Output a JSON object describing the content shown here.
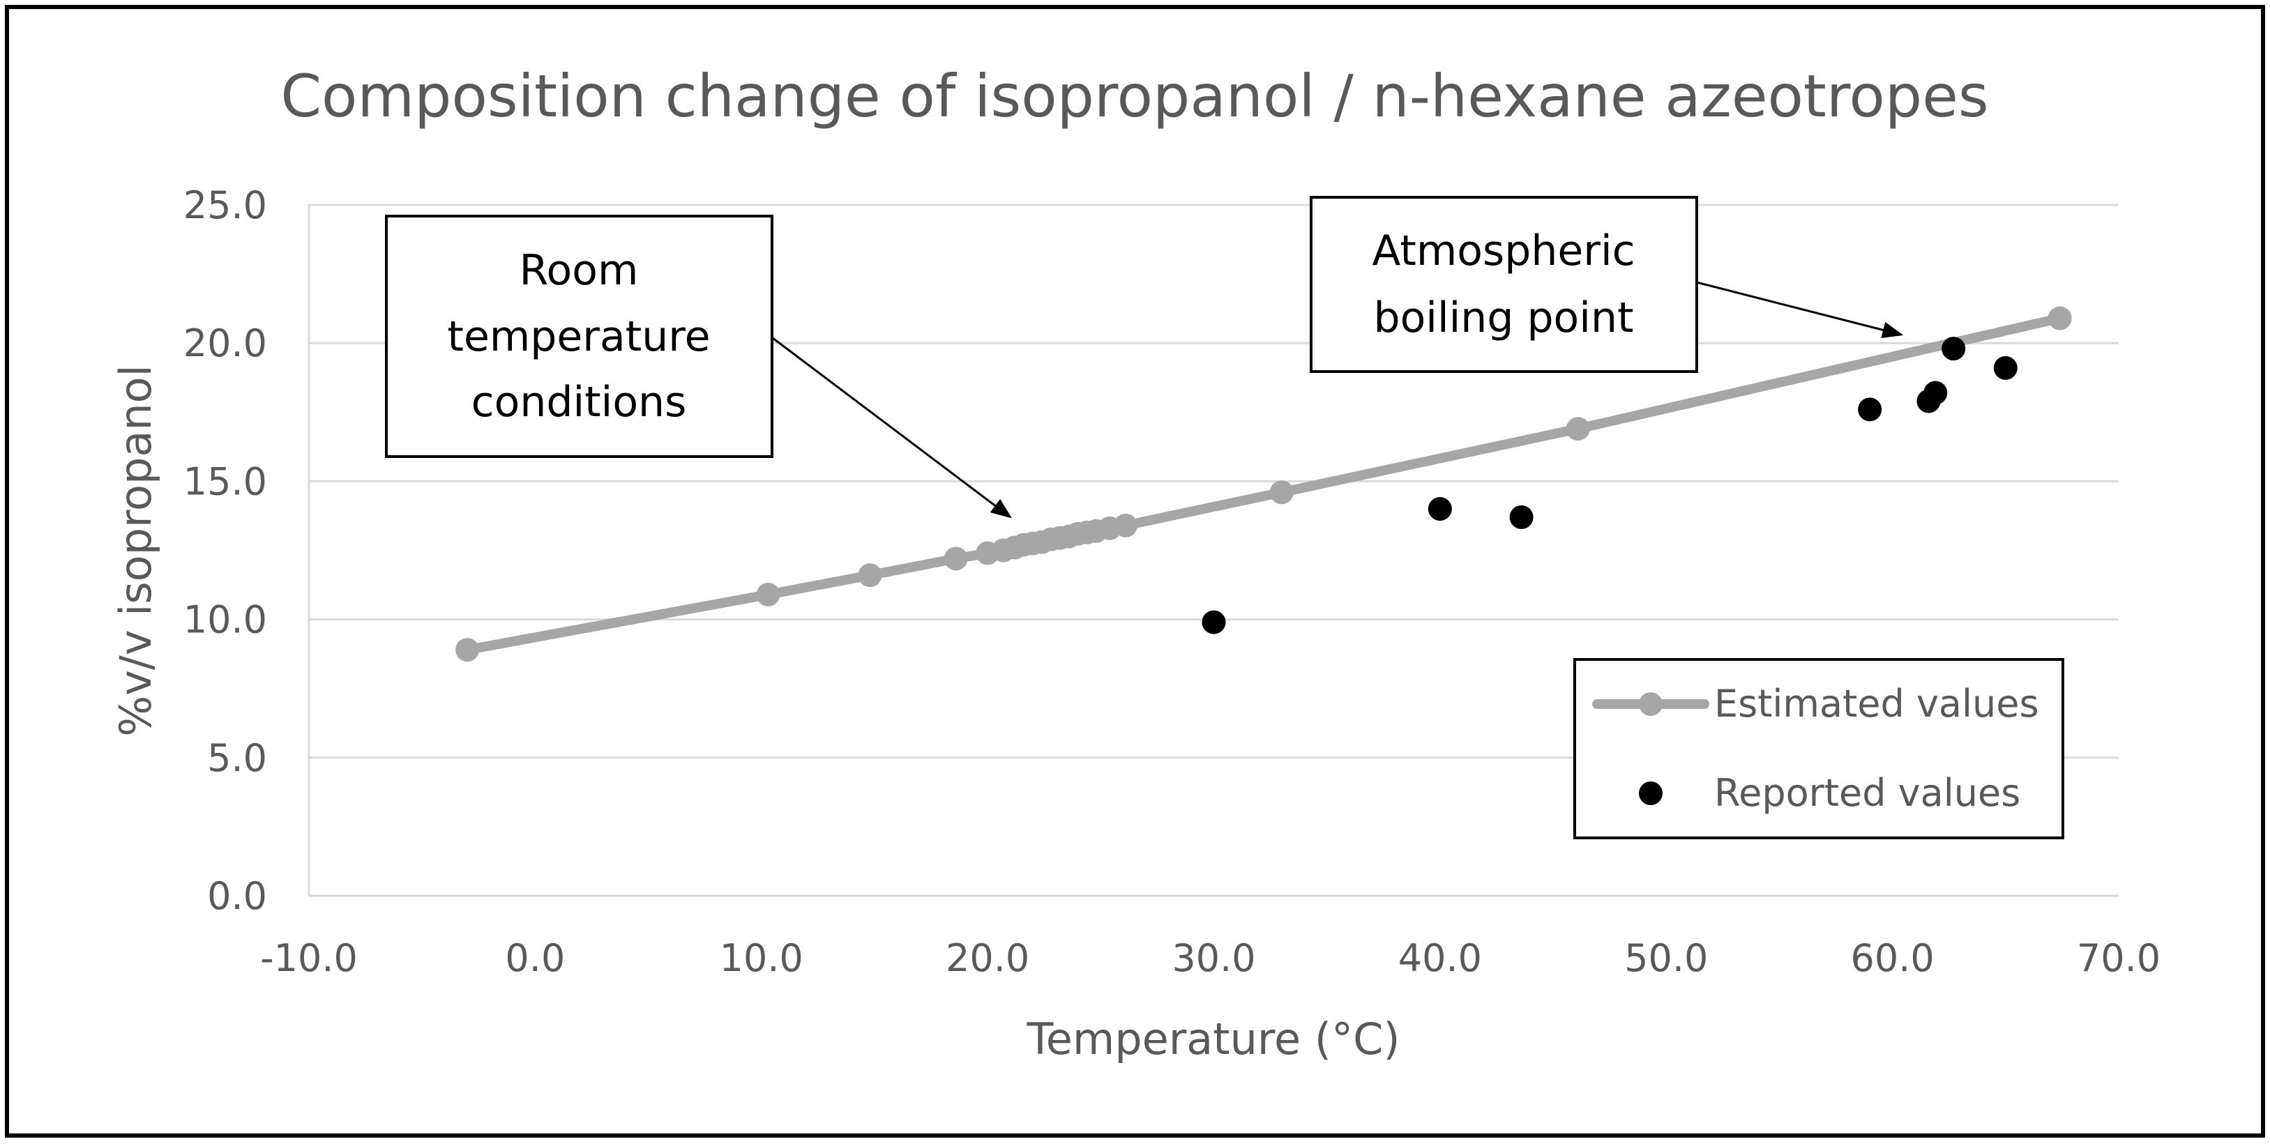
{
  "chart_data": {
    "type": "scatter",
    "title": "Composition change of isopropanol / n-hexane azeotropes",
    "xlabel": "Temperature (°C)",
    "ylabel": "%v/v isopropanol",
    "xlim": [
      -10,
      70
    ],
    "ylim": [
      0,
      25
    ],
    "x_ticks": [
      "-10.0",
      "0.0",
      "10.0",
      "20.0",
      "30.0",
      "40.0",
      "50.0",
      "60.0",
      "70.0"
    ],
    "y_ticks": [
      "0.0",
      "5.0",
      "10.0",
      "15.0",
      "20.0",
      "25.0"
    ],
    "grid": "horizontal",
    "legend_position": "bottom-right",
    "series": [
      {
        "name": "Estimated values",
        "style": "line-markers",
        "color": "#a6a6a6",
        "points": [
          [
            -3,
            8.9
          ],
          [
            10.3,
            10.9
          ],
          [
            14.8,
            11.6
          ],
          [
            18.6,
            12.2
          ],
          [
            20,
            12.4
          ],
          [
            20.7,
            12.5
          ],
          [
            21.2,
            12.6
          ],
          [
            21.6,
            12.7
          ],
          [
            22,
            12.75
          ],
          [
            22.4,
            12.8
          ],
          [
            22.8,
            12.9
          ],
          [
            23.2,
            12.95
          ],
          [
            23.6,
            13.0
          ],
          [
            24,
            13.1
          ],
          [
            24.4,
            13.15
          ],
          [
            24.8,
            13.2
          ],
          [
            25.4,
            13.3
          ],
          [
            26.1,
            13.4
          ],
          [
            33,
            14.6
          ],
          [
            46.1,
            16.9
          ],
          [
            67.4,
            20.9
          ]
        ]
      },
      {
        "name": "Reported values",
        "style": "markers",
        "color": "#000000",
        "points": [
          [
            30,
            9.9
          ],
          [
            40,
            14.0
          ],
          [
            43.6,
            13.7
          ],
          [
            59,
            17.6
          ],
          [
            61.6,
            17.9
          ],
          [
            61.9,
            18.2
          ],
          [
            62.7,
            19.8
          ],
          [
            65,
            19.1
          ]
        ]
      }
    ],
    "annotations": [
      {
        "name": "room-temperature",
        "lines": [
          "Room",
          "temperature",
          "conditions"
        ],
        "points_to": [
          21,
          13.0
        ]
      },
      {
        "name": "boiling-point",
        "lines": [
          "Atmospheric",
          "boiling point"
        ],
        "points_to": [
          60.7,
          19.8
        ]
      }
    ]
  }
}
